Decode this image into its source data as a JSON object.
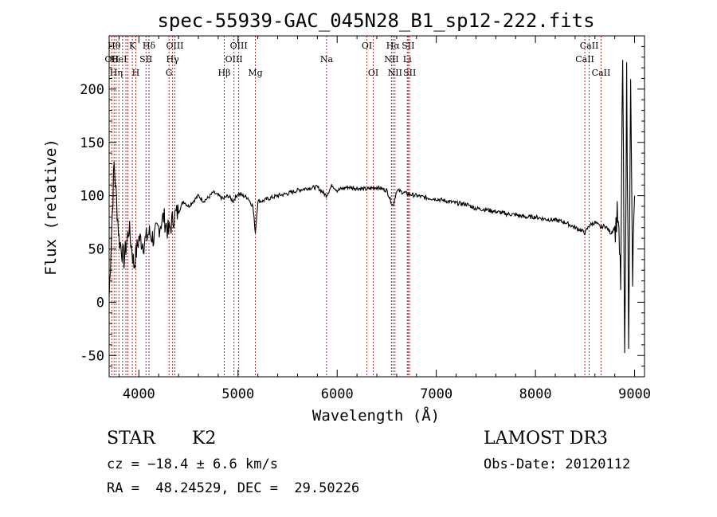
{
  "chart_data": {
    "type": "line",
    "title": "spec-55939-GAC_045N28_B1_sp12-222.fits",
    "xlabel": "Wavelength (Å)",
    "ylabel": "Flux (relative)",
    "xlim": [
      3700,
      9100
    ],
    "ylim": [
      -70,
      250
    ],
    "x_ticks": [
      4000,
      5000,
      6000,
      7000,
      8000,
      9000
    ],
    "y_ticks": [
      -50,
      0,
      50,
      100,
      150,
      200
    ],
    "grid": false,
    "series": [
      {
        "x": [
          3700,
          3750,
          3800,
          3850,
          3900,
          3950,
          4000,
          4050,
          4100,
          4150,
          4200,
          4250,
          4300,
          4350,
          4400,
          4450,
          4500,
          4550,
          4600,
          4650,
          4700,
          4750,
          4800,
          4850,
          4900,
          4950,
          5000,
          5050,
          5100,
          5150,
          5175,
          5200,
          5250,
          5300,
          5400,
          5500,
          5600,
          5700,
          5800,
          5890,
          5950,
          6000,
          6100,
          6200,
          6300,
          6400,
          6500,
          6563,
          6600,
          6700,
          6800,
          6900,
          7000,
          7100,
          7200,
          7300,
          7400,
          7500,
          7600,
          7700,
          7800,
          7900,
          8000,
          8100,
          8200,
          8300,
          8400,
          8450,
          8500,
          8542,
          8600,
          8662,
          8700,
          8760,
          8800,
          8830,
          8860,
          8880,
          8900,
          8920,
          8940,
          8960,
          8980,
          9000
        ],
        "y": [
          5,
          130,
          60,
          40,
          70,
          35,
          60,
          55,
          65,
          60,
          70,
          80,
          65,
          80,
          85,
          95,
          90,
          95,
          100,
          95,
          98,
          103,
          100,
          97,
          100,
          95,
          102,
          100,
          98,
          90,
          65,
          95,
          95,
          97,
          100,
          102,
          105,
          107,
          108,
          100,
          110,
          105,
          108,
          107,
          106,
          108,
          105,
          90,
          105,
          102,
          100,
          98,
          97,
          95,
          93,
          92,
          88,
          87,
          85,
          83,
          82,
          80,
          80,
          78,
          77,
          75,
          70,
          68,
          65,
          72,
          75,
          70,
          72,
          65,
          70,
          80,
          20,
          230,
          -60,
          210,
          -30,
          200,
          20,
          100
        ]
      }
    ],
    "lines": [
      {
        "wl": 3727,
        "label": "OII",
        "row": 2
      },
      {
        "wl": 3750,
        "label": "Hθ",
        "row": 1
      },
      {
        "wl": 3771,
        "label": "Hη",
        "row": 3
      },
      {
        "wl": 3798,
        "label": "HeI",
        "row": 2
      },
      {
        "wl": 3835,
        "label": "",
        "row": 0
      },
      {
        "wl": 3869,
        "label": "",
        "row": 0
      },
      {
        "wl": 3889,
        "label": "",
        "row": 0
      },
      {
        "wl": 3934,
        "label": "K",
        "row": 1
      },
      {
        "wl": 3969,
        "label": "H",
        "row": 3
      },
      {
        "wl": 4072,
        "label": "SII",
        "row": 2
      },
      {
        "wl": 4102,
        "label": "Hδ",
        "row": 1
      },
      {
        "wl": 4304,
        "label": "G",
        "row": 3
      },
      {
        "wl": 4340,
        "label": "Hγ",
        "row": 2
      },
      {
        "wl": 4363,
        "label": "OIII",
        "row": 1
      },
      {
        "wl": 4861,
        "label": "Hβ",
        "row": 3
      },
      {
        "wl": 4959,
        "label": "OIII",
        "row": 2
      },
      {
        "wl": 5007,
        "label": "OIII",
        "row": 1
      },
      {
        "wl": 5175,
        "label": "Mg",
        "row": 3
      },
      {
        "wl": 5893,
        "label": "Na",
        "row": 2
      },
      {
        "wl": 6300,
        "label": "OI",
        "row": 1
      },
      {
        "wl": 6364,
        "label": "OI",
        "row": 3
      },
      {
        "wl": 6548,
        "label": "NII",
        "row": 2
      },
      {
        "wl": 6563,
        "label": "Hα",
        "row": 1
      },
      {
        "wl": 6583,
        "label": "NII",
        "row": 3
      },
      {
        "wl": 6707,
        "label": "Li",
        "row": 2
      },
      {
        "wl": 6716,
        "label": "SII",
        "row": 1
      },
      {
        "wl": 6731,
        "label": "SII",
        "row": 3
      },
      {
        "wl": 8498,
        "label": "CaII",
        "row": 2
      },
      {
        "wl": 8542,
        "label": "CaII",
        "row": 1
      },
      {
        "wl": 8662,
        "label": "CaII",
        "row": 3
      }
    ]
  },
  "info": {
    "class": "STAR",
    "subclass": "K2",
    "cz": "cz = −18.4 ± 6.6 km/s",
    "radec": "RA =  48.24529, DEC =  29.50226",
    "survey": "LAMOST DR3",
    "obsdate": "Obs-Date: 20120112"
  }
}
